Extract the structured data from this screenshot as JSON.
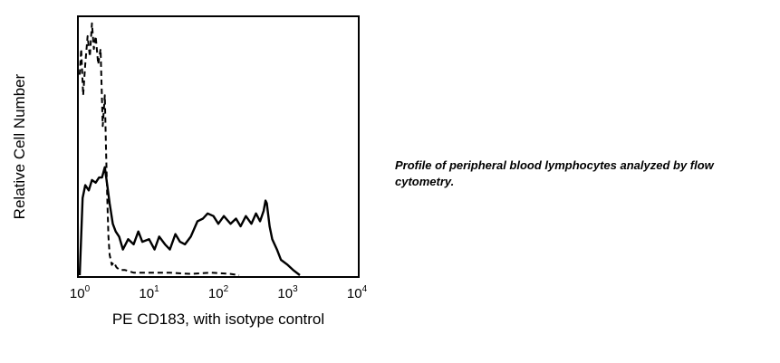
{
  "caption": "Profile of peripheral blood lymphocytes analyzed by flow cytometry.",
  "chart_data": {
    "type": "line",
    "xlabel": "PE CD183, with isotype control",
    "ylabel": "Relative Cell Number",
    "xscale": "log",
    "xlim": [
      1,
      10000
    ],
    "ylim": [
      0,
      100
    ],
    "x_ticks": [
      {
        "base": "10",
        "exp": "0"
      },
      {
        "base": "10",
        "exp": "1"
      },
      {
        "base": "10",
        "exp": "2"
      },
      {
        "base": "10",
        "exp": "3"
      },
      {
        "base": "10",
        "exp": "4"
      }
    ],
    "grid": false,
    "legend": "none",
    "series": [
      {
        "style": "solid",
        "color": "#000000",
        "x": [
          1.0,
          1.1,
          1.2,
          1.35,
          1.5,
          1.7,
          1.9,
          2.1,
          2.3,
          2.5,
          2.7,
          3.0,
          3.3,
          3.7,
          4.2,
          5.0,
          6.0,
          7.0,
          8.0,
          10,
          12,
          14,
          17,
          20,
          24,
          28,
          33,
          40,
          50,
          60,
          70,
          85,
          100,
          120,
          150,
          180,
          210,
          250,
          300,
          350,
          400,
          450,
          480,
          500,
          550,
          600,
          700,
          800,
          1000,
          1200,
          1500
        ],
        "y": [
          0,
          30,
          35,
          33,
          37,
          36,
          38,
          38,
          42,
          35,
          28,
          20,
          17,
          15,
          10,
          14,
          12,
          17,
          13,
          14,
          10,
          15,
          12,
          10,
          16,
          13,
          12,
          15,
          21,
          22,
          24,
          23,
          20,
          23,
          20,
          22,
          19,
          23,
          20,
          24,
          21,
          25,
          29,
          28,
          19,
          14,
          10,
          6,
          4,
          2,
          0
        ]
      },
      {
        "style": "dashed",
        "color": "#000000",
        "x": [
          1.0,
          1.05,
          1.12,
          1.2,
          1.3,
          1.4,
          1.5,
          1.6,
          1.7,
          1.85,
          2.0,
          2.15,
          2.3,
          2.4,
          2.5,
          2.6,
          2.7,
          2.9,
          3.1,
          3.4,
          3.8,
          4.5,
          6,
          8,
          12,
          20,
          40,
          80,
          150,
          200
        ],
        "y": [
          78,
          88,
          70,
          82,
          93,
          85,
          98,
          88,
          93,
          82,
          88,
          58,
          70,
          48,
          30,
          15,
          8,
          4,
          5,
          3,
          2,
          2,
          1,
          1,
          1,
          1,
          0.5,
          1,
          0.5,
          0
        ]
      }
    ]
  }
}
